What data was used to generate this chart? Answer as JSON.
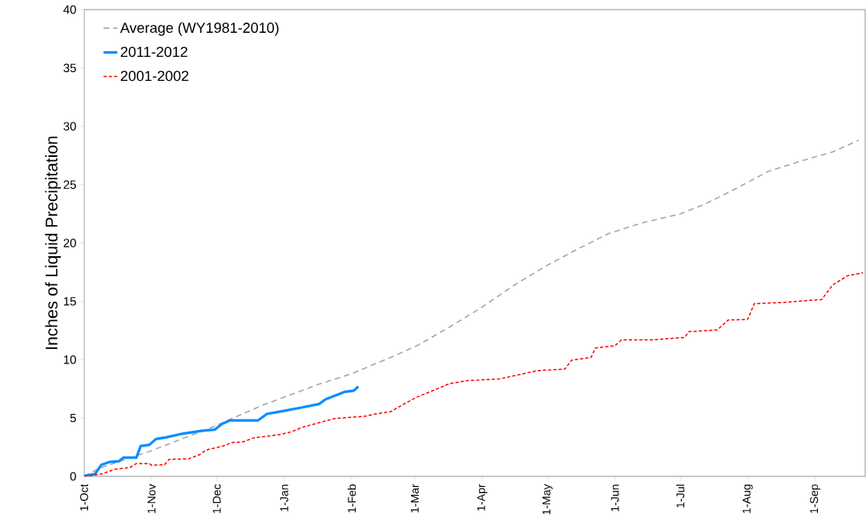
{
  "chart_data": {
    "type": "line",
    "ylabel": "Inches of Liquid Precipitation",
    "xlim": [
      "2011-10-01",
      "2012-09-24"
    ],
    "ylim": [
      0,
      40
    ],
    "xticks": [
      {
        "value": "2011-10-01",
        "label": "1-Oct"
      },
      {
        "value": "2011-11-01",
        "label": "1-Nov"
      },
      {
        "value": "2011-12-01",
        "label": "1-Dec"
      },
      {
        "value": "2012-01-01",
        "label": "1-Jan"
      },
      {
        "value": "2012-02-01",
        "label": "1-Feb"
      },
      {
        "value": "2012-03-01",
        "label": "1-Mar"
      },
      {
        "value": "2012-04-01",
        "label": "1-Apr"
      },
      {
        "value": "2012-05-01",
        "label": "1-May"
      },
      {
        "value": "2012-06-01",
        "label": "1-Jun"
      },
      {
        "value": "2012-07-01",
        "label": "1-Jul"
      },
      {
        "value": "2012-08-01",
        "label": "1-Aug"
      },
      {
        "value": "2012-09-01",
        "label": "1-Sep"
      }
    ],
    "yticks": [
      0,
      5,
      10,
      15,
      20,
      25,
      30,
      35,
      40
    ],
    "grid": false,
    "legend": "top left",
    "marker": "none",
    "series": [
      {
        "name": "Average (WY1981-2010)",
        "color": "#a6a6a6",
        "line_style": "dashed",
        "x": [
          "2011-10-01",
          "2011-10-08",
          "2011-11-01",
          "2011-11-30",
          "2011-12-22",
          "2012-01-17",
          "2012-02-01",
          "2012-02-19",
          "2012-03-02",
          "2012-03-17",
          "2012-03-31",
          "2012-04-15",
          "2012-04-30",
          "2012-05-14",
          "2012-05-29",
          "2012-06-13",
          "2012-07-01",
          "2012-07-12",
          "2012-07-27",
          "2012-08-10",
          "2012-08-25",
          "2012-09-09",
          "2012-09-21"
        ],
        "values": [
          0,
          0.7,
          2.2,
          4.3,
          6.1,
          7.9,
          8.8,
          10.2,
          11.2,
          12.8,
          14.4,
          16.3,
          18.0,
          19.4,
          20.8,
          21.7,
          22.5,
          23.3,
          24.7,
          26.1,
          27.0,
          27.8,
          28.8
        ]
      },
      {
        "name": "2011-2012",
        "color": "#0a8cff",
        "line_style": "solid",
        "x": [
          "2011-10-01",
          "2011-10-06",
          "2011-10-09",
          "2011-10-13",
          "2011-10-17",
          "2011-10-19",
          "2011-10-25",
          "2011-10-27",
          "2011-10-31",
          "2011-11-03",
          "2011-11-08",
          "2011-11-15",
          "2011-11-24",
          "2011-11-30",
          "2011-12-03",
          "2011-12-07",
          "2011-12-20",
          "2011-12-24",
          "2011-12-30",
          "2012-01-09",
          "2012-01-17",
          "2012-01-20",
          "2012-01-24",
          "2012-01-29",
          "2012-02-02",
          "2012-02-04"
        ],
        "values": [
          0.05,
          0.2,
          1.0,
          1.25,
          1.3,
          1.6,
          1.6,
          2.6,
          2.7,
          3.2,
          3.35,
          3.65,
          3.9,
          4.0,
          4.45,
          4.8,
          4.8,
          5.35,
          5.55,
          5.9,
          6.2,
          6.6,
          6.9,
          7.25,
          7.35,
          7.7
        ]
      },
      {
        "name": "2001-2002",
        "color": "#ff0000",
        "line_style": "dotted",
        "x": [
          "2011-10-01",
          "2011-10-09",
          "2011-10-15",
          "2011-10-22",
          "2011-10-25",
          "2011-10-31",
          "2011-11-01",
          "2011-11-07",
          "2011-11-09",
          "2011-11-18",
          "2011-11-23",
          "2011-11-26",
          "2011-12-04",
          "2011-12-08",
          "2011-12-13",
          "2011-12-18",
          "2011-12-29",
          "2012-01-04",
          "2012-01-10",
          "2012-01-18",
          "2012-01-24",
          "2012-02-07",
          "2012-02-12",
          "2012-02-19",
          "2012-02-23",
          "2012-03-02",
          "2012-03-10",
          "2012-03-17",
          "2012-03-25",
          "2012-04-09",
          "2012-04-26",
          "2012-05-09",
          "2012-05-12",
          "2012-05-21",
          "2012-05-23",
          "2012-06-01",
          "2012-06-04",
          "2012-06-18",
          "2012-07-03",
          "2012-07-05",
          "2012-07-18",
          "2012-07-23",
          "2012-08-01",
          "2012-08-04",
          "2012-08-17",
          "2012-09-04",
          "2012-09-09",
          "2012-09-16",
          "2012-09-23"
        ],
        "values": [
          0,
          0.2,
          0.6,
          0.75,
          1.1,
          1.1,
          0.95,
          1.0,
          1.45,
          1.5,
          1.85,
          2.25,
          2.6,
          2.9,
          2.95,
          3.3,
          3.55,
          3.8,
          4.25,
          4.65,
          4.95,
          5.15,
          5.35,
          5.55,
          6.0,
          6.8,
          7.4,
          7.95,
          8.2,
          8.35,
          9.05,
          9.2,
          9.95,
          10.2,
          11.0,
          11.2,
          11.7,
          11.7,
          11.9,
          12.4,
          12.55,
          13.4,
          13.45,
          14.8,
          14.9,
          15.15,
          16.4,
          17.2,
          17.45
        ]
      }
    ]
  }
}
